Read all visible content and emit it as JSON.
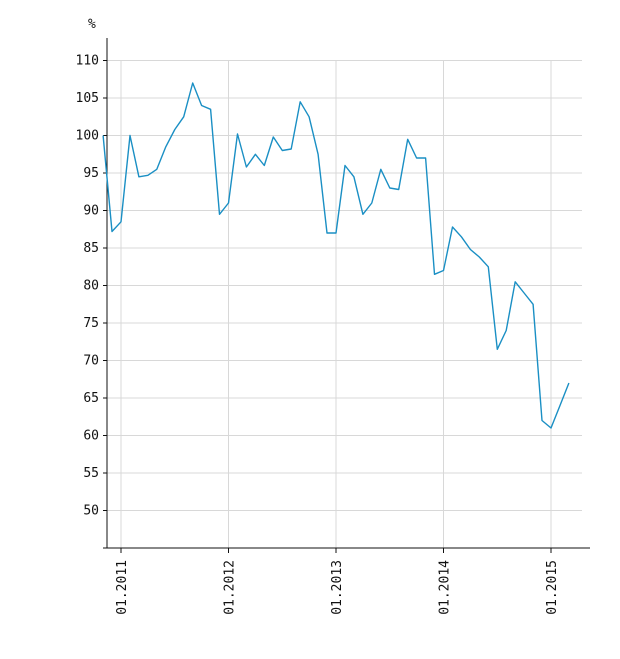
{
  "chart_data": {
    "type": "line",
    "title": "",
    "xlabel": "",
    "ylabel": "%",
    "ylim": [
      45,
      113
    ],
    "yticks": [
      50,
      55,
      60,
      65,
      70,
      75,
      80,
      85,
      90,
      95,
      100,
      105,
      110
    ],
    "xticks": [
      "01.2011",
      "01.2012",
      "01.2013",
      "01.2014",
      "01.2015"
    ],
    "grid": true,
    "line_color": "#1a8fc4",
    "series": [
      {
        "x": [
          "11.2010",
          "12.2010",
          "01.2011",
          "02.2011",
          "03.2011",
          "04.2011",
          "05.2011",
          "06.2011",
          "07.2011",
          "08.2011",
          "09.2011",
          "10.2011",
          "11.2011",
          "12.2011",
          "01.2012",
          "02.2012",
          "03.2012",
          "04.2012",
          "05.2012",
          "06.2012",
          "07.2012",
          "08.2012",
          "09.2012",
          "10.2012",
          "11.2012",
          "12.2012",
          "01.2013",
          "02.2013",
          "03.2013",
          "04.2013",
          "05.2013",
          "06.2013",
          "07.2013",
          "08.2013",
          "09.2013",
          "10.2013",
          "11.2013",
          "12.2013",
          "01.2014",
          "02.2014",
          "03.2014",
          "04.2014",
          "05.2014",
          "06.2014",
          "07.2014",
          "08.2014",
          "09.2014",
          "10.2014",
          "11.2014",
          "12.2014",
          "01.2015",
          "02.2015",
          "03.2015"
        ],
        "values": [
          100.0,
          87.2,
          88.5,
          100.0,
          94.5,
          94.7,
          95.5,
          98.5,
          100.8,
          102.5,
          107.0,
          104.0,
          103.5,
          89.5,
          91.0,
          100.2,
          95.8,
          97.5,
          96.0,
          99.8,
          98.0,
          98.2,
          104.5,
          102.5,
          97.5,
          87.0,
          87.0,
          96.0,
          94.5,
          89.5,
          91.0,
          95.5,
          93.0,
          92.8,
          99.5,
          97.0,
          97.0,
          81.5,
          82.0,
          87.8,
          86.5,
          84.8,
          83.8,
          82.5,
          71.5,
          74.0,
          80.5,
          79.0,
          77.5,
          62.0,
          61.0,
          64.0,
          67.0
        ]
      }
    ]
  }
}
